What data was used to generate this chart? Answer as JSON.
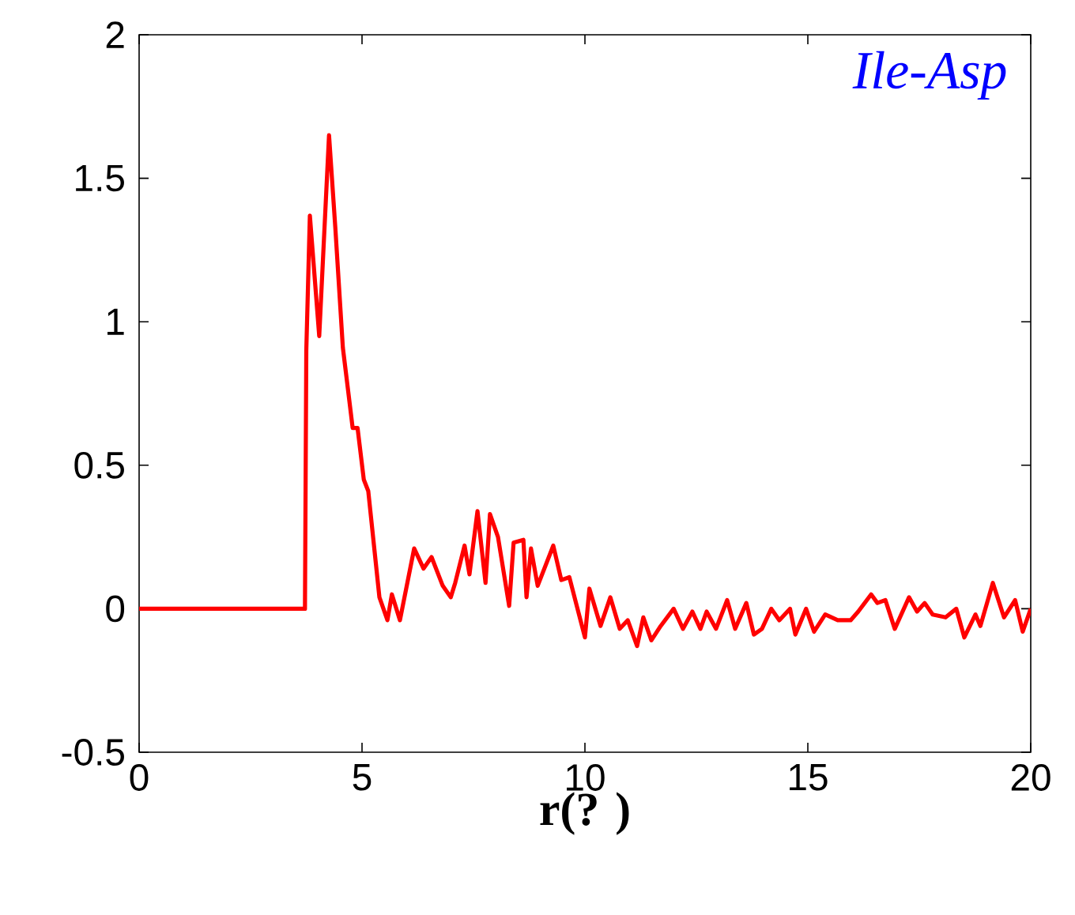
{
  "chart_data": {
    "type": "line",
    "title": "Ile-Asp",
    "xlabel": "r(? )",
    "xlim": [
      0,
      20
    ],
    "xticks": [
      0,
      5,
      10,
      15,
      20
    ],
    "ylim": [
      -0.5,
      2
    ],
    "yticks": [
      -0.5,
      0,
      0.5,
      1,
      1.5,
      2
    ],
    "marker": "none",
    "line_style": "solid",
    "series": [
      {
        "color": "#ff0000",
        "x": [
          0,
          3.72,
          3.75,
          3.83,
          4.04,
          4.26,
          4.4,
          4.57,
          4.79,
          4.9,
          5.04,
          5.14,
          5.39,
          5.57,
          5.67,
          5.85,
          6.17,
          6.38,
          6.56,
          6.81,
          6.99,
          7.09,
          7.3,
          7.41,
          7.59,
          7.77,
          7.87,
          8.05,
          8.3,
          8.4,
          8.62,
          8.69,
          8.79,
          8.94,
          9.29,
          9.47,
          9.65,
          10.0,
          10.1,
          10.35,
          10.57,
          10.78,
          10.96,
          11.17,
          11.31,
          11.49,
          11.7,
          11.99,
          12.2,
          12.41,
          12.59,
          12.73,
          12.94,
          13.19,
          13.37,
          13.62,
          13.79,
          13.97,
          14.18,
          14.36,
          14.6,
          14.72,
          14.96,
          15.14,
          15.39,
          15.67,
          15.96,
          16.13,
          16.42,
          16.56,
          16.74,
          16.95,
          17.27,
          17.45,
          17.62,
          17.8,
          18.09,
          18.33,
          18.51,
          18.76,
          18.87,
          19.15,
          19.4,
          19.65,
          19.82,
          20
        ],
        "values": [
          0,
          0,
          0.9,
          1.37,
          0.95,
          1.65,
          1.33,
          0.91,
          0.63,
          0.63,
          0.45,
          0.41,
          0.04,
          -0.04,
          0.05,
          -0.04,
          0.21,
          0.14,
          0.18,
          0.08,
          0.04,
          0.09,
          0.22,
          0.12,
          0.34,
          0.09,
          0.33,
          0.25,
          0.01,
          0.23,
          0.24,
          0.04,
          0.21,
          0.08,
          0.22,
          0.1,
          0.11,
          -0.1,
          0.07,
          -0.06,
          0.04,
          -0.07,
          -0.04,
          -0.13,
          -0.03,
          -0.11,
          -0.06,
          0,
          -0.07,
          -0.01,
          -0.07,
          -0.01,
          -0.07,
          0.03,
          -0.07,
          0.02,
          -0.09,
          -0.07,
          0,
          -0.04,
          0,
          -0.09,
          0,
          -0.08,
          -0.02,
          -0.04,
          -0.04,
          -0.01,
          0.05,
          0.02,
          0.03,
          -0.07,
          0.04,
          -0.01,
          0.02,
          -0.02,
          -0.03,
          0,
          -0.1,
          -0.02,
          -0.06,
          0.09,
          -0.03,
          0.03,
          -0.08,
          0
        ]
      }
    ]
  }
}
